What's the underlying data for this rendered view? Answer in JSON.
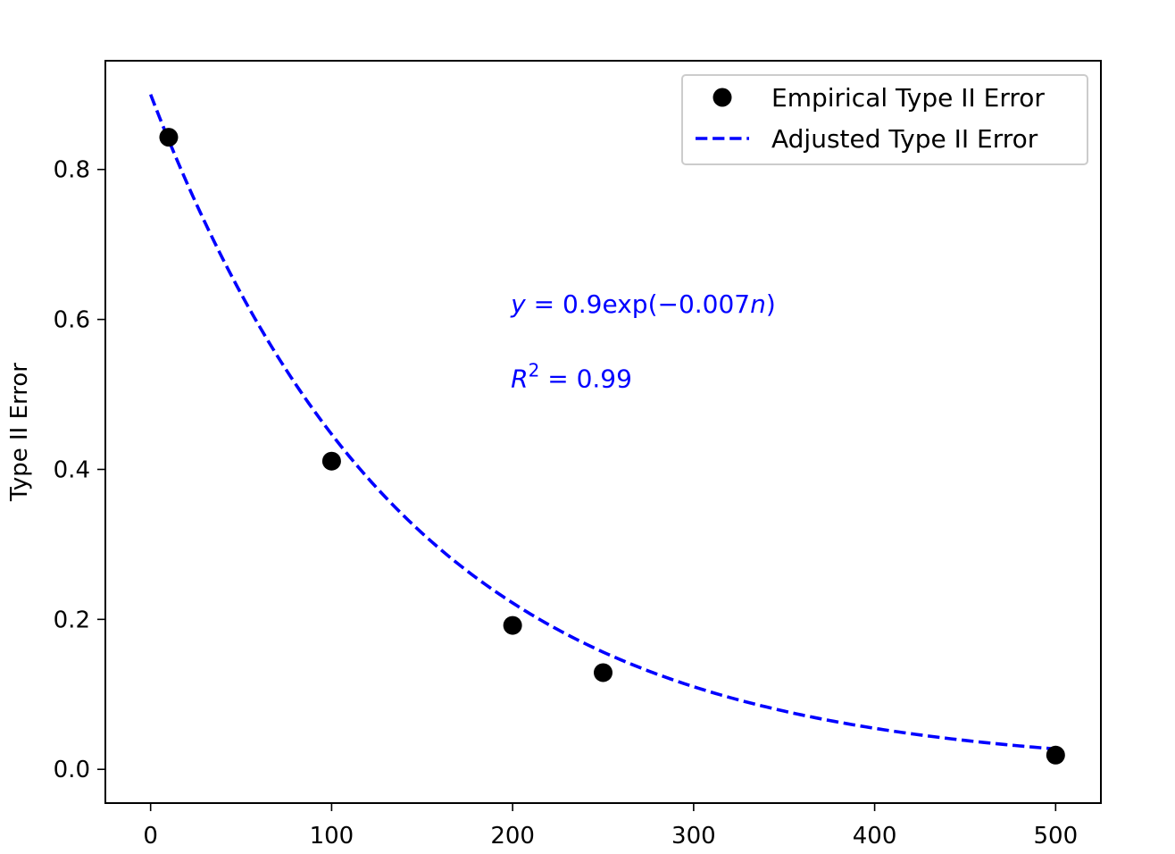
{
  "chart_data": {
    "type": "scatter",
    "title": "",
    "xlabel": "",
    "ylabel": "Type II Error",
    "xlim": [
      -25,
      525
    ],
    "ylim": [
      -0.045,
      0.945
    ],
    "xticks": [
      0,
      100,
      200,
      300,
      400,
      500
    ],
    "yticks": [
      0.0,
      0.2,
      0.4,
      0.6,
      0.8
    ],
    "xtick_labels": [
      "0",
      "100",
      "200",
      "300",
      "400",
      "500"
    ],
    "ytick_labels": [
      "0.0",
      "0.2",
      "0.4",
      "0.6",
      "0.8"
    ],
    "grid": false,
    "legend_position": "top-right",
    "series": [
      {
        "name": "Empirical Type II Error",
        "kind": "scatter",
        "color": "#000000",
        "marker": "circle",
        "x": [
          10,
          100,
          200,
          250,
          500
        ],
        "y": [
          0.843,
          0.411,
          0.192,
          0.129,
          0.019
        ]
      },
      {
        "name": "Adjusted Type II Error",
        "kind": "line",
        "color": "#0000ff",
        "linestyle": "dashed",
        "function": {
          "a": 0.9,
          "b": -0.007
        },
        "x_range": [
          0,
          500
        ]
      }
    ],
    "annotations": [
      {
        "id": "equation",
        "x": 200,
        "y": 0.62,
        "color": "#0000ff",
        "parts": [
          {
            "text": "y",
            "italic": true
          },
          {
            "text": " = 0.9exp(−0.007"
          },
          {
            "text": "n",
            "italic": true
          },
          {
            "text": ")"
          }
        ]
      },
      {
        "id": "r-squared",
        "x": 200,
        "y": 0.52,
        "color": "#0000ff",
        "parts": [
          {
            "text": "R",
            "italic": true
          },
          {
            "text": "2",
            "sup": true
          },
          {
            "text": " = 0.99"
          }
        ]
      }
    ]
  }
}
